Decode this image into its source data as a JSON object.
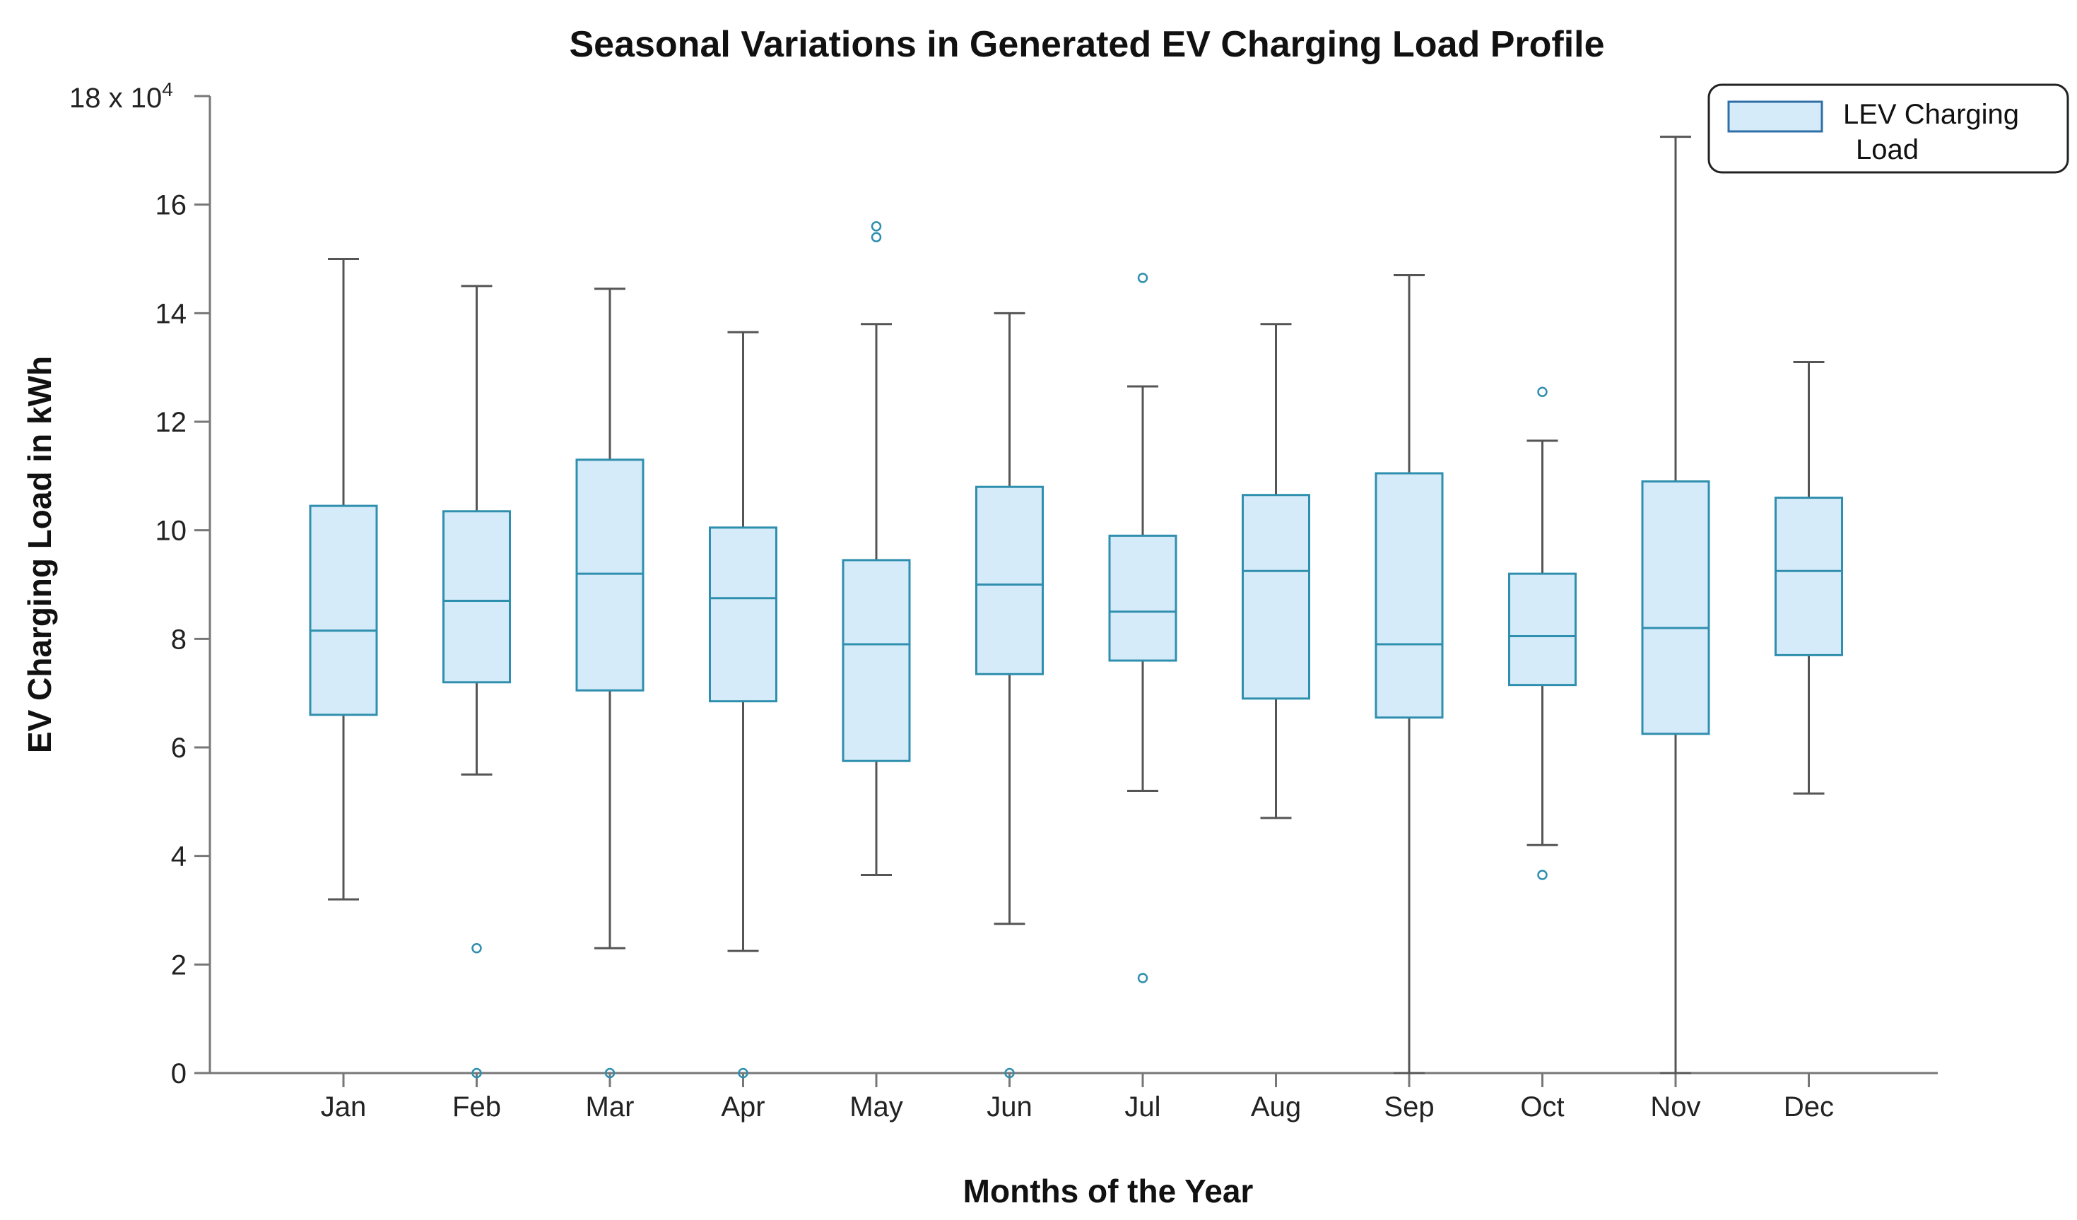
{
  "chart_data": {
    "type": "boxplot",
    "title": "Seasonal Variations in Generated EV Charging Load Profile",
    "xlabel": "Months of the Year",
    "ylabel": "EV Charging Load in kWh",
    "y_multiplier_label": "18 x 10",
    "y_multiplier_exp": "4",
    "ylim": [
      0,
      18
    ],
    "yticks": [
      "0",
      "2",
      "4",
      "6",
      "8",
      "10",
      "12",
      "14",
      "16"
    ],
    "yticks_values": [
      0,
      2,
      4,
      6,
      8,
      10,
      12,
      14,
      16
    ],
    "legend": {
      "label_line1": "LEV Charging",
      "label_line2": "Load",
      "position": "top-right"
    },
    "colors": {
      "box_fill": "#d6ebf9",
      "box_stroke": "#2f8fae",
      "median": "#2f8fae",
      "whisker": "#555555",
      "outlier": "#2f8fae",
      "axis": "#777777"
    },
    "categories": [
      "Jan",
      "Feb",
      "Mar",
      "Apr",
      "May",
      "Jun",
      "Jul",
      "Aug",
      "Sep",
      "Oct",
      "Nov",
      "Dec"
    ],
    "boxes": [
      {
        "month": "Jan",
        "whislo": 3.2,
        "q1": 6.6,
        "med": 8.15,
        "q3": 10.45,
        "whishi": 15.0,
        "fliers": []
      },
      {
        "month": "Feb",
        "whislo": 5.5,
        "q1": 7.2,
        "med": 8.7,
        "q3": 10.35,
        "whishi": 14.5,
        "fliers": [
          2.3,
          0
        ]
      },
      {
        "month": "Mar",
        "whislo": 2.3,
        "q1": 7.05,
        "med": 9.2,
        "q3": 11.3,
        "whishi": 14.45,
        "fliers": [
          0
        ]
      },
      {
        "month": "Apr",
        "whislo": 2.25,
        "q1": 6.85,
        "med": 8.75,
        "q3": 10.05,
        "whishi": 13.65,
        "fliers": [
          0
        ]
      },
      {
        "month": "May",
        "whislo": 3.65,
        "q1": 5.75,
        "med": 7.9,
        "q3": 9.45,
        "whishi": 13.8,
        "fliers": [
          15.6,
          15.4
        ]
      },
      {
        "month": "Jun",
        "whislo": 2.75,
        "q1": 7.35,
        "med": 9.0,
        "q3": 10.8,
        "whishi": 14.0,
        "fliers": [
          0
        ]
      },
      {
        "month": "Jul",
        "whislo": 5.2,
        "q1": 7.6,
        "med": 8.5,
        "q3": 9.9,
        "whishi": 12.65,
        "fliers": [
          14.65,
          1.75
        ]
      },
      {
        "month": "Aug",
        "whislo": 4.7,
        "q1": 6.9,
        "med": 9.25,
        "q3": 10.65,
        "whishi": 13.8,
        "fliers": []
      },
      {
        "month": "Sep",
        "whislo": 0,
        "q1": 6.55,
        "med": 7.9,
        "q3": 11.05,
        "whishi": 14.7,
        "fliers": []
      },
      {
        "month": "Oct",
        "whislo": 4.2,
        "q1": 7.15,
        "med": 8.05,
        "q3": 9.2,
        "whishi": 11.65,
        "fliers": [
          12.55,
          3.65
        ]
      },
      {
        "month": "Nov",
        "whislo": 0,
        "q1": 6.25,
        "med": 8.2,
        "q3": 10.9,
        "whishi": 17.25,
        "fliers": []
      },
      {
        "month": "Dec",
        "whislo": 5.15,
        "q1": 7.7,
        "med": 9.25,
        "q3": 10.6,
        "whishi": 13.1,
        "fliers": []
      }
    ]
  }
}
